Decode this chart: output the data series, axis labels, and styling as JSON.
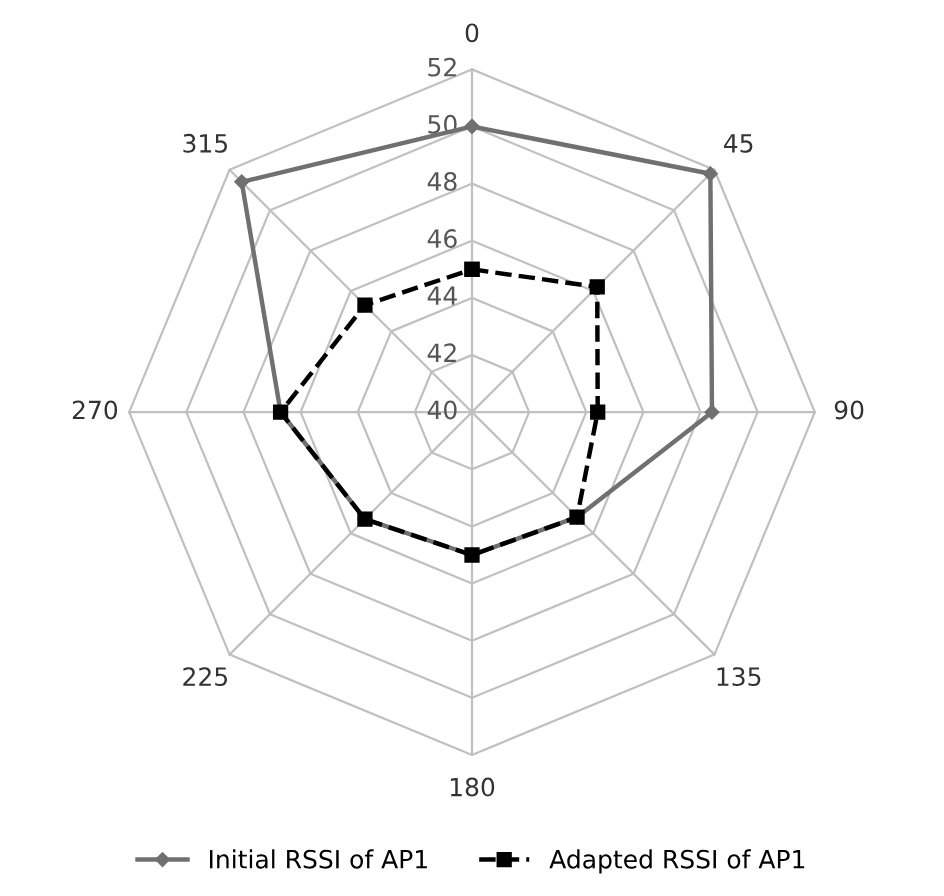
{
  "chart_data": {
    "type": "radar",
    "categories": [
      "0",
      "45",
      "90",
      "135",
      "180",
      "225",
      "270",
      "315"
    ],
    "ylim": [
      40,
      52
    ],
    "yticks": [
      40,
      42,
      44,
      46,
      48,
      50,
      52
    ],
    "grid": true,
    "legend": "bottom",
    "series": [
      {
        "name": "Initial RSSI of AP1",
        "color": "#707070",
        "marker": "diamond",
        "line_style": "solid",
        "values": [
          50,
          51.8,
          48.4,
          45.2,
          45,
          45.3,
          46.7,
          51.4
        ]
      },
      {
        "name": "Adapted RSSI of AP1",
        "color": "#000000",
        "marker": "square",
        "line_style": "dashed",
        "values": [
          45,
          46.2,
          44.4,
          45.2,
          45,
          45.3,
          46.7,
          45.3
        ]
      }
    ]
  }
}
